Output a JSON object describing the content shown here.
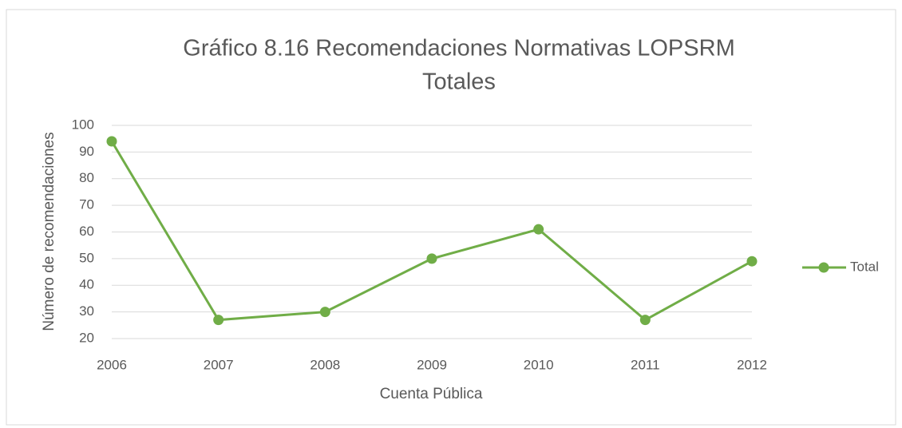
{
  "chart_data": {
    "type": "line",
    "title": [
      "Gráfico 8.16 Recomendaciones  Normativas LOPSRM",
      "Totales"
    ],
    "x_label": "Cuenta Pública",
    "y_label": "Número de recomendaciones",
    "x": [
      2006,
      2007,
      2008,
      2009,
      2010,
      2011,
      2012
    ],
    "xlim": [
      2006,
      2012
    ],
    "xticks": [
      2006,
      2007,
      2008,
      2009,
      2010,
      2011,
      2012
    ],
    "series": [
      {
        "name": "Total",
        "color": "#70ad47",
        "values": [
          94,
          27,
          30,
          50,
          61,
          27,
          49
        ]
      }
    ],
    "ylim": [
      20,
      100
    ],
    "yticks": [
      20,
      30,
      40,
      50,
      60,
      70,
      80,
      90,
      100
    ],
    "grid": true,
    "legend": "right"
  }
}
